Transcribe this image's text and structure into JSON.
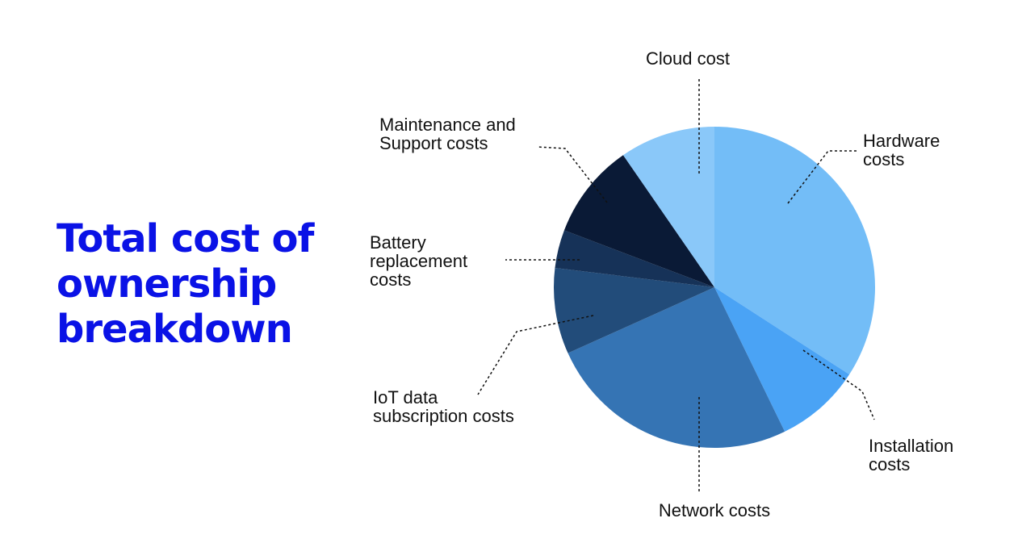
{
  "title_lines": [
    "Total cost of",
    "ownership",
    "breakdown"
  ],
  "chart_data": {
    "type": "pie",
    "start_angle_deg": 0,
    "direction": "clockwise",
    "slices": [
      {
        "label_lines": [
          "Hardware",
          "costs"
        ],
        "value": 35.5,
        "color": "#73bdf7"
      },
      {
        "label_lines": [
          "Installation",
          "costs"
        ],
        "value": 9.0,
        "color": "#4aa3f5"
      },
      {
        "label_lines": [
          "Network costs"
        ],
        "value": 26.5,
        "color": "#3574b4"
      },
      {
        "label_lines": [
          "IoT data",
          "subscription costs"
        ],
        "value": 9.0,
        "color": "#224c7a"
      },
      {
        "label_lines": [
          "Battery",
          "replacement",
          "costs"
        ],
        "value": 4.0,
        "color": "#163258"
      },
      {
        "label_lines": [
          "Maintenance and",
          "Support costs"
        ],
        "value": 10.0,
        "color": "#0a1a36"
      },
      {
        "label_lines": [
          "Cloud cost"
        ],
        "value": 10.0,
        "color": "#8ac8f9"
      }
    ]
  }
}
